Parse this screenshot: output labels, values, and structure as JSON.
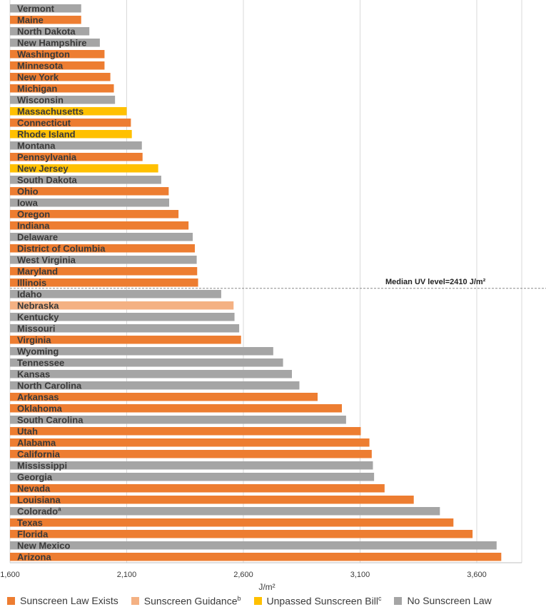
{
  "chart_data": {
    "type": "bar",
    "orientation": "horizontal",
    "xlabel": "J/m²",
    "xlim": [
      1600,
      3800
    ],
    "xticks": [
      "1,600",
      "2,100",
      "2,600",
      "3,100",
      "3,600"
    ],
    "tick_values": [
      1600,
      2100,
      2600,
      3100,
      3600
    ],
    "median_value": 2410,
    "median_label": "Median UV level=2410 J/m²",
    "categories": [
      {
        "id": "law",
        "label": "Sunscreen Law Exists",
        "sup": "",
        "color": "#ED7D31"
      },
      {
        "id": "guidance",
        "label": "Sunscreen Guidance",
        "sup": "b",
        "color": "#F4B183"
      },
      {
        "id": "bill",
        "label": "Unpassed Sunscreen Bill",
        "sup": "c",
        "color": "#FFC000"
      },
      {
        "id": "none",
        "label": "No Sunscreen Law",
        "sup": "",
        "color": "#A5A5A5"
      }
    ],
    "bars": [
      {
        "state": "Vermont",
        "sup": "",
        "value": 1905,
        "category": "none"
      },
      {
        "state": "Maine",
        "sup": "",
        "value": 1905,
        "category": "law"
      },
      {
        "state": "North Dakota",
        "sup": "",
        "value": 1940,
        "category": "none"
      },
      {
        "state": "New Hampshire",
        "sup": "",
        "value": 1985,
        "category": "none"
      },
      {
        "state": "Washington",
        "sup": "",
        "value": 2005,
        "category": "law"
      },
      {
        "state": "Minnesota",
        "sup": "",
        "value": 2005,
        "category": "law"
      },
      {
        "state": "New York",
        "sup": "",
        "value": 2030,
        "category": "law"
      },
      {
        "state": "Michigan",
        "sup": "",
        "value": 2045,
        "category": "law"
      },
      {
        "state": "Wisconsin",
        "sup": "",
        "value": 2050,
        "category": "none"
      },
      {
        "state": "Massachusetts",
        "sup": "",
        "value": 2100,
        "category": "bill"
      },
      {
        "state": "Connecticut",
        "sup": "",
        "value": 2118,
        "category": "law"
      },
      {
        "state": "Rhode Island",
        "sup": "",
        "value": 2122,
        "category": "bill"
      },
      {
        "state": "Montana",
        "sup": "",
        "value": 2165,
        "category": "none"
      },
      {
        "state": "Pennsylvania",
        "sup": "",
        "value": 2168,
        "category": "law"
      },
      {
        "state": "New Jersey",
        "sup": "",
        "value": 2235,
        "category": "bill"
      },
      {
        "state": "South Dakota",
        "sup": "",
        "value": 2248,
        "category": "none"
      },
      {
        "state": "Ohio",
        "sup": "",
        "value": 2280,
        "category": "law"
      },
      {
        "state": "Iowa",
        "sup": "",
        "value": 2282,
        "category": "none"
      },
      {
        "state": "Oregon",
        "sup": "",
        "value": 2322,
        "category": "law"
      },
      {
        "state": "Indiana",
        "sup": "",
        "value": 2365,
        "category": "law"
      },
      {
        "state": "Delaware",
        "sup": "",
        "value": 2383,
        "category": "none"
      },
      {
        "state": "District of Columbia",
        "sup": "",
        "value": 2392,
        "category": "law"
      },
      {
        "state": "West Virginia",
        "sup": "",
        "value": 2400,
        "category": "none"
      },
      {
        "state": "Maryland",
        "sup": "",
        "value": 2402,
        "category": "law"
      },
      {
        "state": "Illinois",
        "sup": "",
        "value": 2406,
        "category": "law"
      },
      {
        "state": "Idaho",
        "sup": "",
        "value": 2505,
        "category": "none"
      },
      {
        "state": "Nebraska",
        "sup": "",
        "value": 2558,
        "category": "guidance"
      },
      {
        "state": "Kentucky",
        "sup": "",
        "value": 2562,
        "category": "none"
      },
      {
        "state": "Missouri",
        "sup": "",
        "value": 2582,
        "category": "none"
      },
      {
        "state": "Virginia",
        "sup": "",
        "value": 2590,
        "category": "law"
      },
      {
        "state": "Wyoming",
        "sup": "",
        "value": 2728,
        "category": "none"
      },
      {
        "state": "Tennessee",
        "sup": "",
        "value": 2770,
        "category": "none"
      },
      {
        "state": "Kansas",
        "sup": "",
        "value": 2808,
        "category": "none"
      },
      {
        "state": "North Carolina",
        "sup": "",
        "value": 2840,
        "category": "none"
      },
      {
        "state": "Arkansas",
        "sup": "",
        "value": 2918,
        "category": "law"
      },
      {
        "state": "Oklahoma",
        "sup": "",
        "value": 3022,
        "category": "law"
      },
      {
        "state": "South Carolina",
        "sup": "",
        "value": 3040,
        "category": "none"
      },
      {
        "state": "Utah",
        "sup": "",
        "value": 3103,
        "category": "law"
      },
      {
        "state": "Alabama",
        "sup": "",
        "value": 3140,
        "category": "law"
      },
      {
        "state": "California",
        "sup": "",
        "value": 3150,
        "category": "law"
      },
      {
        "state": "Mississippi",
        "sup": "",
        "value": 3155,
        "category": "none"
      },
      {
        "state": "Georgia",
        "sup": "",
        "value": 3160,
        "category": "none"
      },
      {
        "state": "Nevada",
        "sup": "",
        "value": 3205,
        "category": "law"
      },
      {
        "state": "Louisiana",
        "sup": "",
        "value": 3330,
        "category": "law"
      },
      {
        "state": "Colorado",
        "sup": "a",
        "value": 3442,
        "category": "none"
      },
      {
        "state": "Texas",
        "sup": "",
        "value": 3500,
        "category": "law"
      },
      {
        "state": "Florida",
        "sup": "",
        "value": 3582,
        "category": "law"
      },
      {
        "state": "New Mexico",
        "sup": "",
        "value": 3685,
        "category": "none"
      },
      {
        "state": "Arizona",
        "sup": "",
        "value": 3705,
        "category": "law"
      }
    ]
  }
}
